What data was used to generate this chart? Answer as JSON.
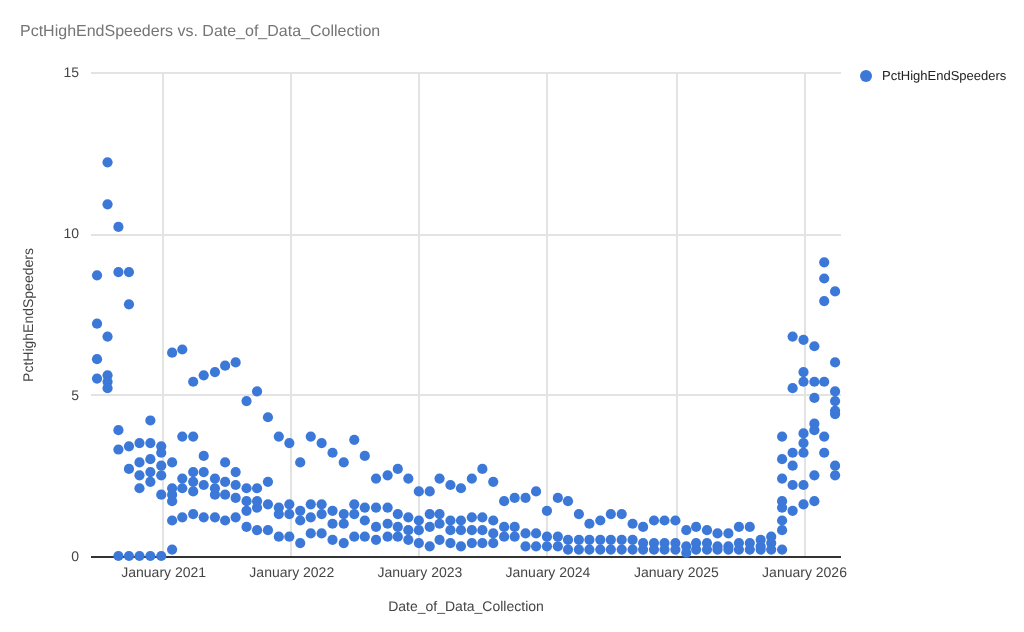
{
  "chart_data": {
    "type": "scatter",
    "title": "PctHighEndSpeeders vs. Date_of_Data_Collection",
    "xlabel": "Date_of_Data_Collection",
    "ylabel": "PctHighEndSpeeders",
    "xlim": [
      "2020-06-08",
      "2026-04-15"
    ],
    "xticks": [
      {
        "value": "2021-01-01",
        "label": "January 2021"
      },
      {
        "value": "2022-01-01",
        "label": "January 2022"
      },
      {
        "value": "2023-01-01",
        "label": "January 2023"
      },
      {
        "value": "2024-01-01",
        "label": "January 2024"
      },
      {
        "value": "2025-01-01",
        "label": "January 2025"
      },
      {
        "value": "2026-01-01",
        "label": "January 2026"
      }
    ],
    "ylim": [
      0,
      15
    ],
    "yticks": [
      0,
      5,
      10,
      15
    ],
    "grid": true,
    "legend": "top right",
    "marker": "circle",
    "x": [
      "2020-06-28",
      "2020-06-28",
      "2020-06-28",
      "2020-06-28",
      "2020-07-28",
      "2020-07-28",
      "2020-07-28",
      "2020-07-28",
      "2020-07-28",
      "2020-07-28",
      "2020-08-28",
      "2020-08-28",
      "2020-08-28",
      "2020-08-28",
      "2020-08-28",
      "2020-09-27",
      "2020-09-27",
      "2020-09-27",
      "2020-09-27",
      "2020-09-27",
      "2020-10-27",
      "2020-10-27",
      "2020-10-27",
      "2020-10-27",
      "2020-10-27",
      "2020-11-27",
      "2020-11-27",
      "2020-11-27",
      "2020-11-27",
      "2020-11-27",
      "2020-11-27",
      "2020-12-28",
      "2020-12-28",
      "2020-12-28",
      "2020-12-28",
      "2020-12-28",
      "2020-12-28",
      "2021-01-28",
      "2021-01-28",
      "2021-01-28",
      "2021-01-28",
      "2021-01-28",
      "2021-01-28",
      "2021-01-28",
      "2021-02-26",
      "2021-02-26",
      "2021-02-26",
      "2021-02-26",
      "2021-02-26",
      "2021-03-29",
      "2021-03-29",
      "2021-03-29",
      "2021-03-29",
      "2021-03-29",
      "2021-03-29",
      "2021-04-28",
      "2021-04-28",
      "2021-04-28",
      "2021-04-28",
      "2021-04-28",
      "2021-05-30",
      "2021-05-30",
      "2021-05-30",
      "2021-05-30",
      "2021-05-30",
      "2021-06-28",
      "2021-06-28",
      "2021-06-28",
      "2021-06-28",
      "2021-06-28",
      "2021-07-28",
      "2021-07-28",
      "2021-07-28",
      "2021-07-28",
      "2021-07-28",
      "2021-08-28",
      "2021-08-28",
      "2021-08-28",
      "2021-08-28",
      "2021-08-28",
      "2021-09-27",
      "2021-09-27",
      "2021-09-27",
      "2021-09-27",
      "2021-09-27",
      "2021-10-28",
      "2021-10-28",
      "2021-10-28",
      "2021-10-28",
      "2021-11-28",
      "2021-11-28",
      "2021-11-28",
      "2021-11-28",
      "2021-12-28",
      "2021-12-28",
      "2021-12-28",
      "2021-12-28",
      "2022-01-28",
      "2022-01-28",
      "2022-01-28",
      "2022-01-28",
      "2022-02-27",
      "2022-02-27",
      "2022-02-27",
      "2022-02-27",
      "2022-03-30",
      "2022-03-30",
      "2022-03-30",
      "2022-03-30",
      "2022-04-30",
      "2022-04-30",
      "2022-04-30",
      "2022-04-30",
      "2022-06-01",
      "2022-06-01",
      "2022-06-01",
      "2022-06-01",
      "2022-07-01",
      "2022-07-01",
      "2022-07-01",
      "2022-07-01",
      "2022-07-31",
      "2022-07-31",
      "2022-07-31",
      "2022-07-31",
      "2022-09-01",
      "2022-09-01",
      "2022-09-01",
      "2022-09-01",
      "2022-10-04",
      "2022-10-04",
      "2022-10-04",
      "2022-10-04",
      "2022-11-02",
      "2022-11-02",
      "2022-11-02",
      "2022-11-02",
      "2022-12-02",
      "2022-12-02",
      "2022-12-02",
      "2022-12-02",
      "2023-01-01",
      "2023-01-01",
      "2023-01-01",
      "2023-01-01",
      "2023-02-01",
      "2023-02-01",
      "2023-02-01",
      "2023-02-01",
      "2023-03-01",
      "2023-03-01",
      "2023-03-01",
      "2023-03-01",
      "2023-04-01",
      "2023-04-01",
      "2023-04-01",
      "2023-04-01",
      "2023-05-01",
      "2023-05-01",
      "2023-05-01",
      "2023-05-01",
      "2023-06-01",
      "2023-06-01",
      "2023-06-01",
      "2023-06-01",
      "2023-07-01",
      "2023-07-01",
      "2023-07-01",
      "2023-07-01",
      "2023-08-01",
      "2023-08-01",
      "2023-08-01",
      "2023-08-01",
      "2023-09-01",
      "2023-09-01",
      "2023-09-01",
      "2023-10-01",
      "2023-10-01",
      "2023-10-01",
      "2023-11-01",
      "2023-11-01",
      "2023-11-01",
      "2023-12-01",
      "2023-12-01",
      "2023-12-01",
      "2024-01-01",
      "2024-01-01",
      "2024-01-01",
      "2024-02-01",
      "2024-02-01",
      "2024-02-01",
      "2024-03-01",
      "2024-03-01",
      "2024-03-01",
      "2024-04-01",
      "2024-04-01",
      "2024-04-01",
      "2024-05-01",
      "2024-05-01",
      "2024-05-01",
      "2024-06-01",
      "2024-06-01",
      "2024-06-01",
      "2024-07-01",
      "2024-07-01",
      "2024-07-01",
      "2024-08-01",
      "2024-08-01",
      "2024-08-01",
      "2024-09-01",
      "2024-09-01",
      "2024-09-01",
      "2024-10-01",
      "2024-10-01",
      "2024-10-01",
      "2024-11-01",
      "2024-11-01",
      "2024-11-01",
      "2024-12-01",
      "2024-12-01",
      "2024-12-01",
      "2025-01-01",
      "2025-01-01",
      "2025-01-01",
      "2025-02-01",
      "2025-02-01",
      "2025-02-01",
      "2025-03-01",
      "2025-03-01",
      "2025-03-01",
      "2025-04-01",
      "2025-04-01",
      "2025-04-01",
      "2025-05-01",
      "2025-05-01",
      "2025-05-01",
      "2025-06-01",
      "2025-06-01",
      "2025-06-01",
      "2025-07-01",
      "2025-07-01",
      "2025-07-01",
      "2025-08-01",
      "2025-08-01",
      "2025-08-01",
      "2025-09-01",
      "2025-09-01",
      "2025-09-01",
      "2025-10-01",
      "2025-10-01",
      "2025-10-01",
      "2025-11-01",
      "2025-11-01",
      "2025-11-01",
      "2025-11-01",
      "2025-11-01",
      "2025-11-01",
      "2025-11-01",
      "2025-11-01",
      "2025-12-01",
      "2025-12-01",
      "2025-12-01",
      "2025-12-01",
      "2025-12-01",
      "2025-12-01",
      "2026-01-01",
      "2026-01-01",
      "2026-01-01",
      "2026-01-01",
      "2026-01-01",
      "2026-01-01",
      "2026-01-01",
      "2026-01-01",
      "2026-02-01",
      "2026-02-01",
      "2026-02-01",
      "2026-02-01",
      "2026-02-01",
      "2026-02-01",
      "2026-02-01",
      "2026-03-01",
      "2026-03-01",
      "2026-03-01",
      "2026-03-01",
      "2026-03-01",
      "2026-03-01",
      "2026-04-01",
      "2026-04-01",
      "2026-04-01",
      "2026-04-01",
      "2026-04-01",
      "2026-04-01",
      "2026-04-01",
      "2026-04-01"
    ],
    "series": [
      {
        "name": "PctHighEndSpeeders",
        "color": "#3c78d8",
        "values": [
          8.7,
          7.2,
          6.1,
          5.5,
          12.2,
          10.9,
          6.8,
          5.6,
          5.4,
          5.2,
          10.2,
          8.8,
          3.9,
          3.3,
          0,
          8.8,
          7.8,
          3.4,
          2.7,
          0,
          3.5,
          2.9,
          2.5,
          2.1,
          0,
          4.2,
          3.5,
          3.0,
          2.6,
          2.3,
          0,
          3.4,
          3.2,
          2.8,
          2.5,
          1.9,
          0,
          6.3,
          2.9,
          2.1,
          1.9,
          1.7,
          1.1,
          0.2,
          6.4,
          3.7,
          2.4,
          2.1,
          1.2,
          5.4,
          3.7,
          2.6,
          2.3,
          2.0,
          1.3,
          5.6,
          3.1,
          2.6,
          2.2,
          1.2,
          5.7,
          2.4,
          2.1,
          1.9,
          1.2,
          5.9,
          2.9,
          2.3,
          1.9,
          1.1,
          6.0,
          2.6,
          2.2,
          1.8,
          1.2,
          4.8,
          2.1,
          1.7,
          1.4,
          0.9,
          5.1,
          2.1,
          1.7,
          1.5,
          0.8,
          4.3,
          2.3,
          1.6,
          0.8,
          3.7,
          1.5,
          1.3,
          0.6,
          3.5,
          1.6,
          1.3,
          0.6,
          2.9,
          1.4,
          1.1,
          0.4,
          3.7,
          1.6,
          1.2,
          0.7,
          3.5,
          1.6,
          1.3,
          0.7,
          3.2,
          1.4,
          1.0,
          0.5,
          2.9,
          1.3,
          1.0,
          0.4,
          3.6,
          1.6,
          1.3,
          0.6,
          3.1,
          1.5,
          1.1,
          0.6,
          2.4,
          1.5,
          0.9,
          0.5,
          2.5,
          1.5,
          1.0,
          0.6,
          2.7,
          1.3,
          0.9,
          0.6,
          2.4,
          1.2,
          0.8,
          0.5,
          2.0,
          1.1,
          0.8,
          0.4,
          2.0,
          1.3,
          0.9,
          0.3,
          2.4,
          1.3,
          1.0,
          0.5,
          2.2,
          1.1,
          0.8,
          0.4,
          2.1,
          1.1,
          0.8,
          0.3,
          2.4,
          1.2,
          0.8,
          0.4,
          2.7,
          1.2,
          0.8,
          0.4,
          2.3,
          1.1,
          0.7,
          0.4,
          1.7,
          0.9,
          0.6,
          1.8,
          0.9,
          0.6,
          1.8,
          0.7,
          0.3,
          2.0,
          0.7,
          0.3,
          1.4,
          0.6,
          0.3,
          1.8,
          0.6,
          0.3,
          1.7,
          0.5,
          0.2,
          1.3,
          0.5,
          0.2,
          1.0,
          0.5,
          0.2,
          1.1,
          0.5,
          0.2,
          1.3,
          0.5,
          0.2,
          1.3,
          0.5,
          0.2,
          1.0,
          0.5,
          0.2,
          0.9,
          0.4,
          0.2,
          1.1,
          0.4,
          0.2,
          1.1,
          0.4,
          0.2,
          1.1,
          0.4,
          0.2,
          0.8,
          0.3,
          0.1,
          0.9,
          0.4,
          0.2,
          0.8,
          0.4,
          0.2,
          0.7,
          0.3,
          0.2,
          0.7,
          0.3,
          0.2,
          0.9,
          0.4,
          0.2,
          0.9,
          0.4,
          0.2,
          0.5,
          0.3,
          0.2,
          0.6,
          0.4,
          0.2,
          3.7,
          3.0,
          2.4,
          1.7,
          1.5,
          1.1,
          0.8,
          0.2,
          6.8,
          5.2,
          3.2,
          2.8,
          2.2,
          1.4,
          6.7,
          5.7,
          5.4,
          3.8,
          3.5,
          3.2,
          2.2,
          1.6,
          6.5,
          5.4,
          4.9,
          4.1,
          3.9,
          2.5,
          1.7,
          9.1,
          8.6,
          7.9,
          5.4,
          3.7,
          3.2,
          8.2,
          6.0,
          5.1,
          4.8,
          4.5,
          4.4,
          2.8,
          2.5
        ]
      }
    ]
  }
}
